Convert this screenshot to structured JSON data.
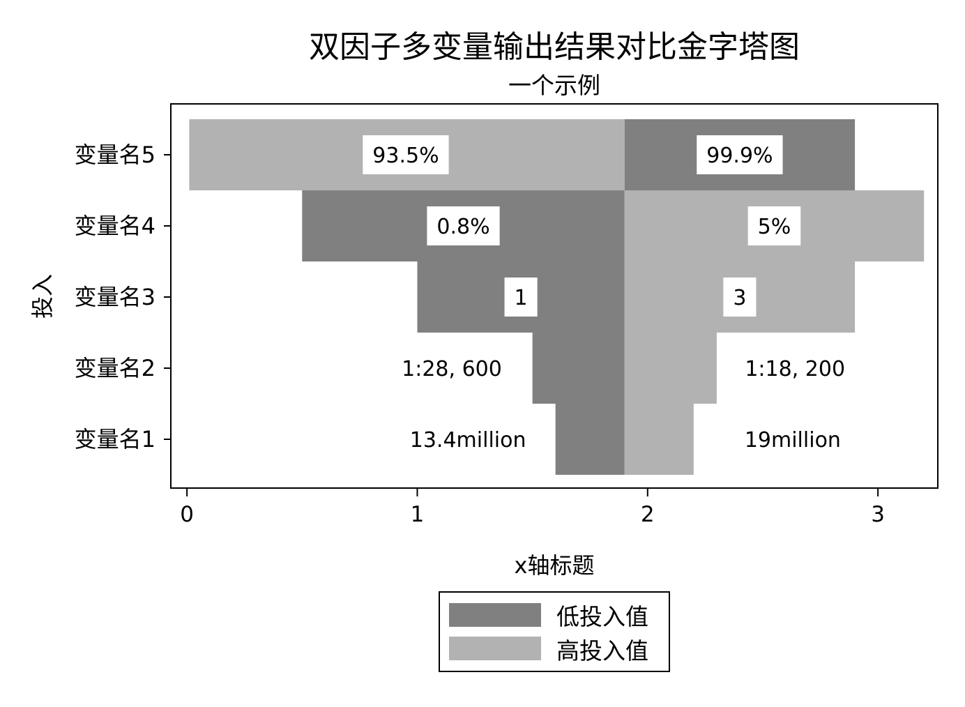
{
  "chart_data": {
    "type": "bar",
    "orientation": "horizontal",
    "title": "双因子多变量输出结果对比金字塔图",
    "subtitle": "一个示例",
    "xlabel": "x轴标题",
    "ylabel": "投入",
    "xlim": [
      -0.07,
      3.26
    ],
    "xticks": [
      0,
      1,
      2,
      3
    ],
    "grid": false,
    "legend_position": "bottom",
    "center": 1.9,
    "categories": [
      "变量名5",
      "变量名4",
      "变量名3",
      "变量名2",
      "变量名1"
    ],
    "series": [
      {
        "name": "低投入值",
        "color": "#808080",
        "left": [
          0.01,
          0.5,
          1.0,
          1.5,
          1.6
        ],
        "right": [
          1.9,
          1.9,
          1.9,
          1.9,
          1.9
        ],
        "labels": [
          "93.5%",
          "0.8%",
          "1",
          "1:28, 600",
          "13.4million"
        ],
        "label_x": [
          0.95,
          1.2,
          1.45,
          1.15,
          1.22
        ],
        "label_boxed": [
          true,
          true,
          true,
          false,
          false
        ]
      },
      {
        "name": "高投入值",
        "color": "#b2b2b2",
        "left": [
          1.9,
          1.9,
          1.9,
          1.9,
          1.9
        ],
        "right": [
          2.9,
          3.2,
          2.9,
          2.3,
          2.2
        ],
        "labels": [
          "99.9%",
          "5%",
          "3",
          "1:18, 200",
          "19million"
        ],
        "label_x": [
          2.4,
          2.55,
          2.4,
          2.64,
          2.63
        ],
        "label_boxed": [
          true,
          true,
          true,
          false,
          false
        ]
      }
    ],
    "top_bar_colors": [
      "#b2b2b2",
      "#808080"
    ]
  }
}
